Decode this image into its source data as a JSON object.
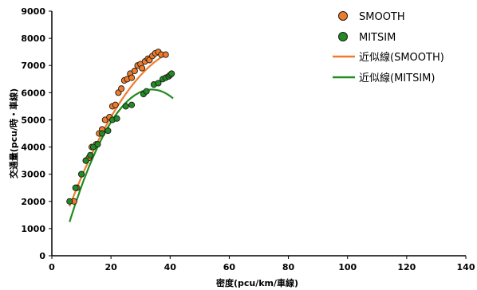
{
  "chart_data": {
    "type": "scatter",
    "title": "",
    "xlabel": "密度(pcu/km/車線)",
    "ylabel": "交通量(pcu/時・車線)",
    "xlim": [
      0,
      140
    ],
    "ylim": [
      0,
      9000
    ],
    "xticks": [
      0,
      20,
      40,
      60,
      80,
      100,
      120,
      140
    ],
    "yticks": [
      0,
      1000,
      2000,
      3000,
      4000,
      5000,
      6000,
      7000,
      8000,
      9000
    ],
    "grid": false,
    "legend_position": "top-right",
    "series": [
      {
        "name": "SMOOTH",
        "kind": "scatter",
        "color": "#f07c2b",
        "points": [
          [
            7.5,
            2000
          ],
          [
            8.5,
            2500
          ],
          [
            10,
            3000
          ],
          [
            11.5,
            3500
          ],
          [
            12.5,
            3600
          ],
          [
            13.5,
            4000
          ],
          [
            15,
            4100
          ],
          [
            16,
            4500
          ],
          [
            17,
            4650
          ],
          [
            18,
            5000
          ],
          [
            19.5,
            5100
          ],
          [
            20.5,
            5500
          ],
          [
            21.5,
            5550
          ],
          [
            22.5,
            6000
          ],
          [
            23.5,
            6150
          ],
          [
            24.5,
            6450
          ],
          [
            25.5,
            6500
          ],
          [
            26.5,
            6700
          ],
          [
            27,
            6550
          ],
          [
            28,
            6800
          ],
          [
            29,
            7000
          ],
          [
            30,
            7050
          ],
          [
            30.5,
            6900
          ],
          [
            31.5,
            7150
          ],
          [
            32.5,
            7250
          ],
          [
            33,
            7200
          ],
          [
            34,
            7350
          ],
          [
            35,
            7450
          ],
          [
            36,
            7500
          ],
          [
            37,
            7400
          ],
          [
            38.5,
            7400
          ]
        ]
      },
      {
        "name": "MITSIM",
        "kind": "scatter",
        "color": "#238b23",
        "points": [
          [
            6,
            2000
          ],
          [
            8,
            2500
          ],
          [
            10,
            3000
          ],
          [
            11.5,
            3500
          ],
          [
            13,
            3700
          ],
          [
            14,
            4000
          ],
          [
            15.5,
            4100
          ],
          [
            17,
            4500
          ],
          [
            19,
            4600
          ],
          [
            20.5,
            5000
          ],
          [
            22,
            5050
          ],
          [
            25,
            5500
          ],
          [
            27,
            5550
          ],
          [
            31,
            5950
          ],
          [
            32,
            6050
          ],
          [
            34.5,
            6300
          ],
          [
            36,
            6350
          ],
          [
            37.5,
            6500
          ],
          [
            38.5,
            6550
          ],
          [
            39.5,
            6600
          ],
          [
            40,
            6650
          ],
          [
            40.5,
            6700
          ]
        ]
      },
      {
        "name": "近似線(SMOOTH)",
        "kind": "line",
        "color": "#f07c2b",
        "x": [
          6,
          38
        ],
        "curve": {
          "a": -3.4,
          "b": 323.2,
          "c": 0
        }
      },
      {
        "name": "近似線(MITSIM)",
        "kind": "line",
        "color": "#1e8c1e",
        "x": [
          6,
          41
        ],
        "curve": {
          "a": -6.3,
          "b": 426,
          "c": -1085
        }
      }
    ]
  }
}
